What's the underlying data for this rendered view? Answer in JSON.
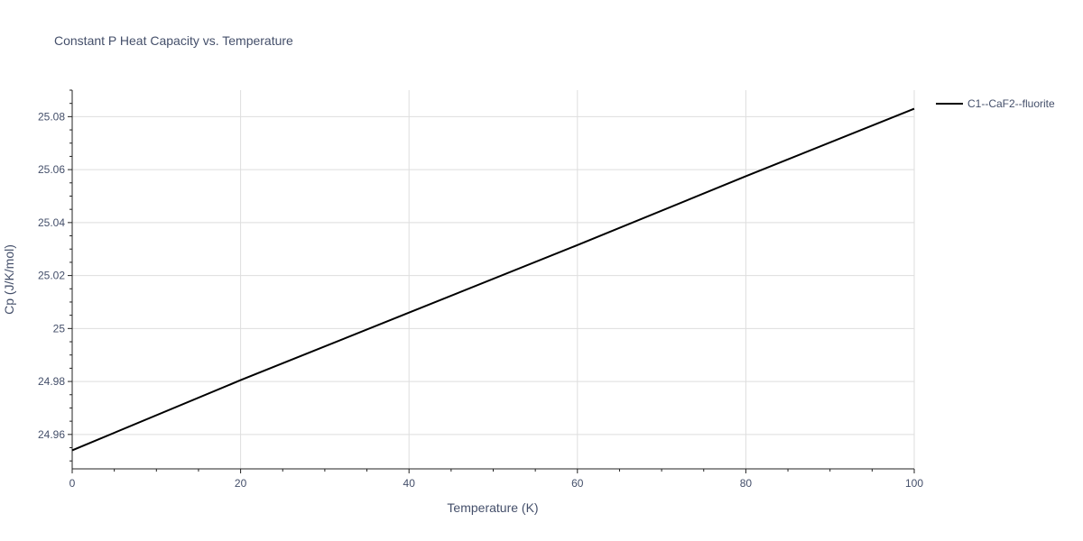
{
  "chart_data": {
    "type": "line",
    "title": "Constant P Heat Capacity vs. Temperature",
    "xlabel": "Temperature (K)",
    "ylabel": "Cp (J/K/mol)",
    "xlim": [
      0,
      100
    ],
    "ylim": [
      24.947,
      25.09
    ],
    "x_ticks": [
      0,
      20,
      40,
      60,
      80,
      100
    ],
    "y_ticks": [
      24.96,
      24.98,
      25,
      25.02,
      25.04,
      25.06,
      25.08
    ],
    "grid": true,
    "legend_position": "top-right",
    "series": [
      {
        "name": "C1--CaF2--fluorite",
        "color": "#000000",
        "x": [
          0,
          20,
          40,
          60,
          80,
          100
        ],
        "y": [
          24.954,
          24.9805,
          25.006,
          25.0315,
          25.0575,
          25.083
        ]
      }
    ]
  }
}
